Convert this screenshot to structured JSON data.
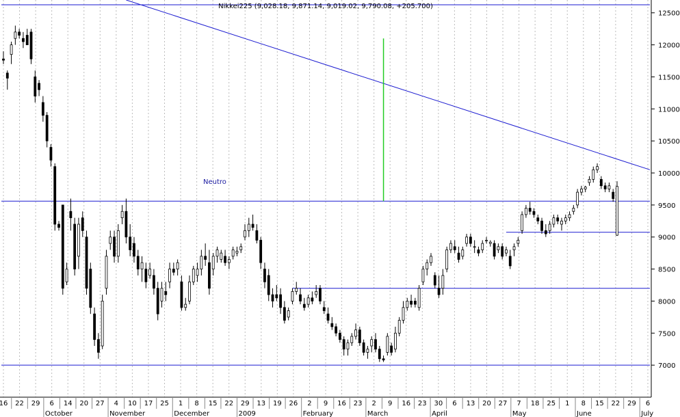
{
  "chart_data": {
    "type": "candlestick",
    "title": "Nikkei225 (9,028.18, 9,871.14, 9,019.02, 9,790.08, +205.700)",
    "ylim": [
      6500,
      12700
    ],
    "y_ticks": [
      7000,
      7500,
      8000,
      8500,
      9000,
      9500,
      10000,
      10500,
      11000,
      11500,
      12000,
      12500
    ],
    "x_day_labels": [
      "16",
      "22",
      "29",
      "6",
      "14",
      "20",
      "27",
      "4",
      "10",
      "17",
      "25",
      "1",
      "8",
      "15",
      "22",
      "29",
      "13",
      "19",
      "26",
      "2",
      "9",
      "16",
      "23",
      "2",
      "9",
      "16",
      "23",
      "30",
      "6",
      "13",
      "20",
      "27",
      "7",
      "18",
      "25",
      "1",
      "8",
      "15",
      "22",
      "29",
      "6"
    ],
    "x_month_labels": [
      "October",
      "November",
      "December",
      "2009",
      "February",
      "March",
      "April",
      "May",
      "June",
      "July"
    ],
    "annotation": "Neutro",
    "colors": {
      "up_fill": "#ffffff",
      "down_fill": "#000000",
      "candle_stroke": "#000000",
      "support_line": "#1a1ad0",
      "trend_line": "#1a1ad0",
      "marker_line": "#22cc22",
      "grid": "#bbbbbb"
    },
    "support_levels": [
      7000,
      8200,
      9075,
      9560
    ],
    "trend_line": {
      "from": {
        "x_index": 31,
        "y": 12700
      },
      "to": {
        "x_index": 153,
        "y": 10050
      }
    },
    "marker_line": {
      "x_index": 96,
      "y_from": 9560,
      "y_to": 12100
    },
    "candles": [
      {
        "o": 11780,
        "h": 11900,
        "l": 11700,
        "c": 11760
      },
      {
        "o": 11560,
        "h": 11600,
        "l": 11300,
        "c": 11480
      },
      {
        "o": 11850,
        "h": 12050,
        "l": 11700,
        "c": 12000
      },
      {
        "o": 12100,
        "h": 12300,
        "l": 12000,
        "c": 12200
      },
      {
        "o": 12200,
        "h": 12250,
        "l": 12100,
        "c": 12150
      },
      {
        "o": 12100,
        "h": 12200,
        "l": 11950,
        "c": 12050
      },
      {
        "o": 12150,
        "h": 12250,
        "l": 12050,
        "c": 12000
      },
      {
        "o": 12200,
        "h": 12250,
        "l": 11700,
        "c": 11780
      },
      {
        "o": 11500,
        "h": 11600,
        "l": 11100,
        "c": 11200
      },
      {
        "o": 11400,
        "h": 11450,
        "l": 11200,
        "c": 11300
      },
      {
        "o": 11100,
        "h": 11200,
        "l": 10800,
        "c": 10900
      },
      {
        "o": 10900,
        "h": 10950,
        "l": 10400,
        "c": 10500
      },
      {
        "o": 10400,
        "h": 10450,
        "l": 10100,
        "c": 10200
      },
      {
        "o": 10100,
        "h": 10150,
        "l": 9100,
        "c": 9200
      },
      {
        "o": 9200,
        "h": 9250,
        "l": 9100,
        "c": 9150
      },
      {
        "o": 9500,
        "h": 9500,
        "l": 8100,
        "c": 8200
      },
      {
        "o": 8300,
        "h": 8600,
        "l": 8250,
        "c": 8500
      },
      {
        "o": 9400,
        "h": 9600,
        "l": 9100,
        "c": 9300
      },
      {
        "o": 9200,
        "h": 9300,
        "l": 8400,
        "c": 8500
      },
      {
        "o": 8700,
        "h": 9300,
        "l": 8500,
        "c": 9200
      },
      {
        "o": 9300,
        "h": 9400,
        "l": 9000,
        "c": 9100
      },
      {
        "o": 9000,
        "h": 9100,
        "l": 8100,
        "c": 8200
      },
      {
        "o": 8500,
        "h": 8600,
        "l": 7800,
        "c": 7900
      },
      {
        "o": 7800,
        "h": 7900,
        "l": 7300,
        "c": 7400
      },
      {
        "o": 7400,
        "h": 7500,
        "l": 7100,
        "c": 7200
      },
      {
        "o": 7300,
        "h": 8100,
        "l": 7250,
        "c": 8000
      },
      {
        "o": 8200,
        "h": 8800,
        "l": 8100,
        "c": 8700
      },
      {
        "o": 8900,
        "h": 9100,
        "l": 8800,
        "c": 9000
      },
      {
        "o": 9000,
        "h": 9100,
        "l": 8600,
        "c": 8700
      },
      {
        "o": 8700,
        "h": 9200,
        "l": 8600,
        "c": 9100
      },
      {
        "o": 9300,
        "h": 9500,
        "l": 9200,
        "c": 9400
      },
      {
        "o": 9400,
        "h": 9600,
        "l": 8900,
        "c": 9000
      },
      {
        "o": 9000,
        "h": 9200,
        "l": 8700,
        "c": 8800
      },
      {
        "o": 8900,
        "h": 9000,
        "l": 8600,
        "c": 8700
      },
      {
        "o": 8700,
        "h": 8800,
        "l": 8400,
        "c": 8500
      },
      {
        "o": 8500,
        "h": 8700,
        "l": 8300,
        "c": 8600
      },
      {
        "o": 8500,
        "h": 8600,
        "l": 8200,
        "c": 8300
      },
      {
        "o": 8400,
        "h": 8600,
        "l": 8350,
        "c": 8500
      },
      {
        "o": 8400,
        "h": 8500,
        "l": 8100,
        "c": 8200
      },
      {
        "o": 8200,
        "h": 8300,
        "l": 7700,
        "c": 7800
      },
      {
        "o": 8000,
        "h": 8300,
        "l": 7900,
        "c": 8200
      },
      {
        "o": 8150,
        "h": 8300,
        "l": 8000,
        "c": 8100
      },
      {
        "o": 8300,
        "h": 8600,
        "l": 8200,
        "c": 8500
      },
      {
        "o": 8500,
        "h": 8600,
        "l": 8400,
        "c": 8450
      },
      {
        "o": 8500,
        "h": 8650,
        "l": 8400,
        "c": 8600
      },
      {
        "o": 8300,
        "h": 8400,
        "l": 7850,
        "c": 7900
      },
      {
        "o": 7900,
        "h": 8050,
        "l": 7850,
        "c": 7950
      },
      {
        "o": 8000,
        "h": 8400,
        "l": 7950,
        "c": 8300
      },
      {
        "o": 8300,
        "h": 8550,
        "l": 8250,
        "c": 8500
      },
      {
        "o": 8400,
        "h": 8600,
        "l": 8300,
        "c": 8500
      },
      {
        "o": 8500,
        "h": 8800,
        "l": 8400,
        "c": 8700
      },
      {
        "o": 8700,
        "h": 8900,
        "l": 8550,
        "c": 8650
      },
      {
        "o": 8600,
        "h": 8800,
        "l": 8100,
        "c": 8200
      },
      {
        "o": 8500,
        "h": 8750,
        "l": 8400,
        "c": 8700
      },
      {
        "o": 8700,
        "h": 8850,
        "l": 8600,
        "c": 8800
      },
      {
        "o": 8650,
        "h": 8800,
        "l": 8600,
        "c": 8750
      },
      {
        "o": 8700,
        "h": 8800,
        "l": 8550,
        "c": 8600
      },
      {
        "o": 8600,
        "h": 8700,
        "l": 8500,
        "c": 8650
      },
      {
        "o": 8700,
        "h": 8850,
        "l": 8650,
        "c": 8800
      },
      {
        "o": 8750,
        "h": 8850,
        "l": 8700,
        "c": 8780
      },
      {
        "o": 8800,
        "h": 8900,
        "l": 8750,
        "c": 8850
      },
      {
        "o": 9000,
        "h": 9200,
        "l": 8950,
        "c": 9100
      },
      {
        "o": 9100,
        "h": 9300,
        "l": 9000,
        "c": 9200
      },
      {
        "o": 9200,
        "h": 9350,
        "l": 9100,
        "c": 9150
      },
      {
        "o": 9100,
        "h": 9200,
        "l": 8900,
        "c": 8950
      },
      {
        "o": 8950,
        "h": 9000,
        "l": 8500,
        "c": 8600
      },
      {
        "o": 8500,
        "h": 8600,
        "l": 8200,
        "c": 8300
      },
      {
        "o": 8400,
        "h": 8500,
        "l": 8000,
        "c": 8100
      },
      {
        "o": 8100,
        "h": 8200,
        "l": 7900,
        "c": 8000
      },
      {
        "o": 8100,
        "h": 8250,
        "l": 8000,
        "c": 8050
      },
      {
        "o": 8100,
        "h": 8200,
        "l": 7800,
        "c": 7900
      },
      {
        "o": 7900,
        "h": 8000,
        "l": 7650,
        "c": 7700
      },
      {
        "o": 7750,
        "h": 7900,
        "l": 7700,
        "c": 7850
      },
      {
        "o": 8000,
        "h": 8200,
        "l": 7950,
        "c": 8150
      },
      {
        "o": 8150,
        "h": 8300,
        "l": 8100,
        "c": 8200
      },
      {
        "o": 8100,
        "h": 8200,
        "l": 7950,
        "c": 8000
      },
      {
        "o": 7950,
        "h": 8050,
        "l": 7850,
        "c": 7900
      },
      {
        "o": 7950,
        "h": 8100,
        "l": 7900,
        "c": 8050
      },
      {
        "o": 8050,
        "h": 8150,
        "l": 7950,
        "c": 8000
      },
      {
        "o": 8100,
        "h": 8250,
        "l": 8050,
        "c": 8150
      },
      {
        "o": 8200,
        "h": 8250,
        "l": 7950,
        "c": 8000
      },
      {
        "o": 7900,
        "h": 8000,
        "l": 7800,
        "c": 7850
      },
      {
        "o": 7800,
        "h": 7900,
        "l": 7650,
        "c": 7700
      },
      {
        "o": 7650,
        "h": 7750,
        "l": 7550,
        "c": 7600
      },
      {
        "o": 7600,
        "h": 7650,
        "l": 7450,
        "c": 7500
      },
      {
        "o": 7500,
        "h": 7550,
        "l": 7350,
        "c": 7400
      },
      {
        "o": 7400,
        "h": 7450,
        "l": 7150,
        "c": 7250
      },
      {
        "o": 7250,
        "h": 7400,
        "l": 7150,
        "c": 7350
      },
      {
        "o": 7350,
        "h": 7500,
        "l": 7300,
        "c": 7450
      },
      {
        "o": 7450,
        "h": 7650,
        "l": 7400,
        "c": 7550
      },
      {
        "o": 7550,
        "h": 7600,
        "l": 7300,
        "c": 7350
      },
      {
        "o": 7350,
        "h": 7400,
        "l": 7150,
        "c": 7200
      },
      {
        "o": 7200,
        "h": 7300,
        "l": 7100,
        "c": 7250
      },
      {
        "o": 7300,
        "h": 7450,
        "l": 7200,
        "c": 7400
      },
      {
        "o": 7400,
        "h": 7500,
        "l": 7200,
        "c": 7250
      },
      {
        "o": 7250,
        "h": 7300,
        "l": 7050,
        "c": 7100
      },
      {
        "o": 7100,
        "h": 7150,
        "l": 7050,
        "c": 7080
      },
      {
        "o": 7200,
        "h": 7500,
        "l": 7150,
        "c": 7450
      },
      {
        "o": 7300,
        "h": 7350,
        "l": 7150,
        "c": 7200
      },
      {
        "o": 7250,
        "h": 7600,
        "l": 7200,
        "c": 7500
      },
      {
        "o": 7500,
        "h": 7750,
        "l": 7450,
        "c": 7700
      },
      {
        "o": 7700,
        "h": 8000,
        "l": 7650,
        "c": 7900
      },
      {
        "o": 7900,
        "h": 8050,
        "l": 7850,
        "c": 8000
      },
      {
        "o": 8000,
        "h": 8100,
        "l": 7900,
        "c": 7950
      },
      {
        "o": 8000,
        "h": 8050,
        "l": 7900,
        "c": 7950
      },
      {
        "o": 7900,
        "h": 8250,
        "l": 7850,
        "c": 8200
      },
      {
        "o": 8300,
        "h": 8550,
        "l": 8250,
        "c": 8500
      },
      {
        "o": 8500,
        "h": 8650,
        "l": 8400,
        "c": 8600
      },
      {
        "o": 8600,
        "h": 8750,
        "l": 8550,
        "c": 8700
      },
      {
        "o": 8400,
        "h": 8450,
        "l": 8200,
        "c": 8250
      },
      {
        "o": 8200,
        "h": 8400,
        "l": 8050,
        "c": 8100
      },
      {
        "o": 8200,
        "h": 8500,
        "l": 8100,
        "c": 8400
      },
      {
        "o": 8500,
        "h": 8850,
        "l": 8450,
        "c": 8800
      },
      {
        "o": 8800,
        "h": 8950,
        "l": 8750,
        "c": 8900
      },
      {
        "o": 8850,
        "h": 8950,
        "l": 8750,
        "c": 8800
      },
      {
        "o": 8750,
        "h": 8850,
        "l": 8600,
        "c": 8650
      },
      {
        "o": 8700,
        "h": 8850,
        "l": 8650,
        "c": 8800
      },
      {
        "o": 8900,
        "h": 9050,
        "l": 8850,
        "c": 9000
      },
      {
        "o": 9000,
        "h": 9050,
        "l": 8850,
        "c": 8900
      },
      {
        "o": 8850,
        "h": 8950,
        "l": 8750,
        "c": 8850
      },
      {
        "o": 8800,
        "h": 8850,
        "l": 8700,
        "c": 8750
      },
      {
        "o": 8800,
        "h": 8950,
        "l": 8750,
        "c": 8900
      },
      {
        "o": 8950,
        "h": 9000,
        "l": 8900,
        "c": 8950
      },
      {
        "o": 8900,
        "h": 8950,
        "l": 8850,
        "c": 8920
      },
      {
        "o": 8900,
        "h": 8950,
        "l": 8650,
        "c": 8700
      },
      {
        "o": 8800,
        "h": 8900,
        "l": 8750,
        "c": 8850
      },
      {
        "o": 8850,
        "h": 8900,
        "l": 8650,
        "c": 8700
      },
      {
        "o": 8750,
        "h": 8850,
        "l": 8700,
        "c": 8800
      },
      {
        "o": 8700,
        "h": 8800,
        "l": 8500,
        "c": 8550
      },
      {
        "o": 8800,
        "h": 8900,
        "l": 8700,
        "c": 8850
      },
      {
        "o": 8900,
        "h": 9000,
        "l": 8850,
        "c": 8950
      },
      {
        "o": 9100,
        "h": 9400,
        "l": 9050,
        "c": 9350
      },
      {
        "o": 9350,
        "h": 9500,
        "l": 9300,
        "c": 9450
      },
      {
        "o": 9450,
        "h": 9550,
        "l": 9350,
        "c": 9400
      },
      {
        "o": 9400,
        "h": 9450,
        "l": 9300,
        "c": 9350
      },
      {
        "o": 9300,
        "h": 9350,
        "l": 9200,
        "c": 9250
      },
      {
        "o": 9250,
        "h": 9300,
        "l": 9050,
        "c": 9100
      },
      {
        "o": 9100,
        "h": 9200,
        "l": 9000,
        "c": 9050
      },
      {
        "o": 9100,
        "h": 9250,
        "l": 9050,
        "c": 9200
      },
      {
        "o": 9200,
        "h": 9350,
        "l": 9150,
        "c": 9300
      },
      {
        "o": 9300,
        "h": 9350,
        "l": 9200,
        "c": 9250
      },
      {
        "o": 9200,
        "h": 9300,
        "l": 9100,
        "c": 9250
      },
      {
        "o": 9250,
        "h": 9350,
        "l": 9200,
        "c": 9300
      },
      {
        "o": 9300,
        "h": 9400,
        "l": 9250,
        "c": 9350
      },
      {
        "o": 9400,
        "h": 9500,
        "l": 9350,
        "c": 9450
      },
      {
        "o": 9500,
        "h": 9750,
        "l": 9450,
        "c": 9700
      },
      {
        "o": 9700,
        "h": 9800,
        "l": 9650,
        "c": 9750
      },
      {
        "o": 9750,
        "h": 9800,
        "l": 9700,
        "c": 9780
      },
      {
        "o": 9850,
        "h": 9950,
        "l": 9800,
        "c": 9900
      },
      {
        "o": 9900,
        "h": 10100,
        "l": 9850,
        "c": 10050
      },
      {
        "o": 10050,
        "h": 10150,
        "l": 10000,
        "c": 10100
      },
      {
        "o": 9900,
        "h": 9950,
        "l": 9750,
        "c": 9800
      },
      {
        "o": 9800,
        "h": 9850,
        "l": 9700,
        "c": 9750
      },
      {
        "o": 9750,
        "h": 9850,
        "l": 9700,
        "c": 9800
      },
      {
        "o": 9700,
        "h": 9750,
        "l": 9550,
        "c": 9600
      },
      {
        "o": 9028,
        "h": 9871,
        "l": 9019,
        "c": 9790
      }
    ]
  }
}
